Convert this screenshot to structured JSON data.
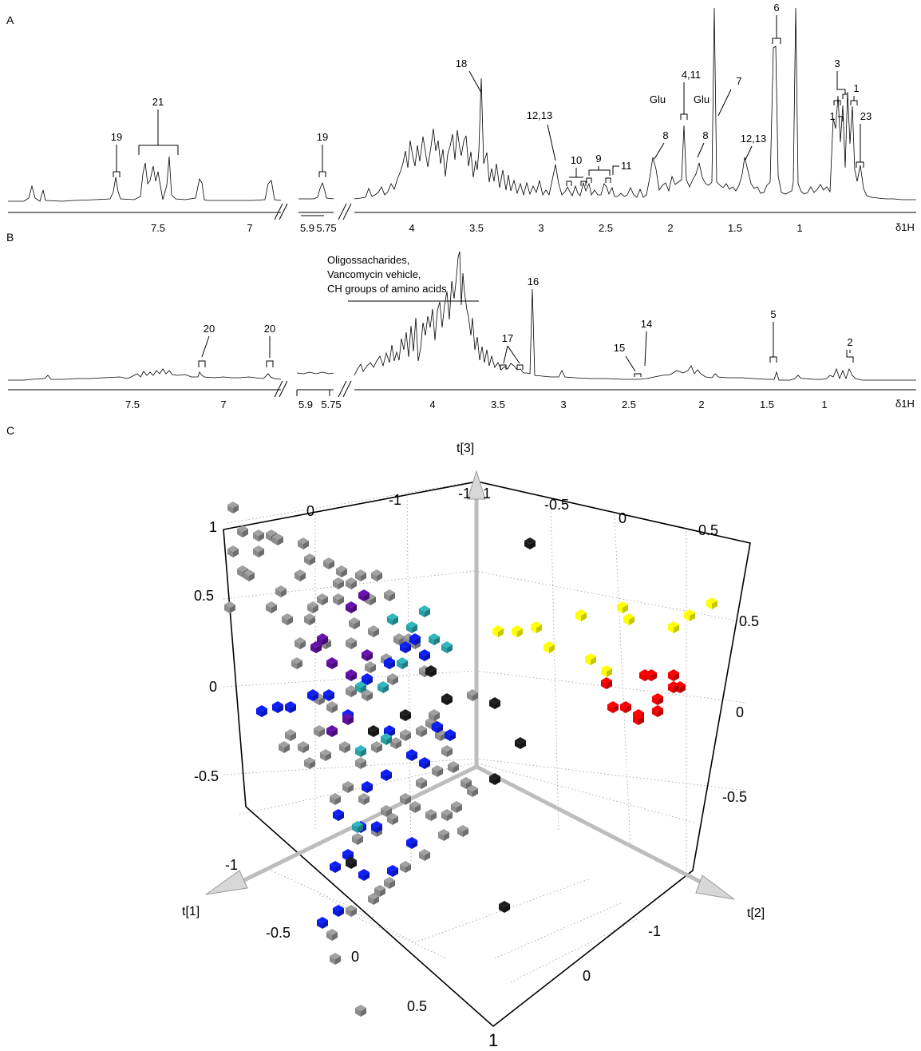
{
  "chart_data": [
    {
      "panel": "A",
      "type": "line",
      "xlabel": "δ1H",
      "segments": [
        {
          "xlim": [
            7.85,
            6.68
          ],
          "ticks": [
            "7.5",
            "7"
          ]
        },
        {
          "xlim": [
            5.95,
            5.7
          ],
          "ticks": [
            "5.9",
            "5.75"
          ]
        },
        {
          "xlim": [
            4.35,
            0.65
          ],
          "ticks": [
            "4",
            "3.5",
            "3",
            "2.5",
            "2",
            "1.5",
            "1"
          ]
        }
      ],
      "annotations": [
        "19",
        "21",
        "19",
        "18",
        "12,13",
        "10",
        "9",
        "11",
        "8",
        "4,11",
        "Glu",
        "Glu",
        "8",
        "7",
        "12,13",
        "6",
        "3",
        "1",
        "1",
        "23"
      ]
    },
    {
      "panel": "B",
      "type": "line",
      "xlabel": "δ1H",
      "segments": [
        {
          "xlim": [
            7.85,
            6.68
          ],
          "ticks": [
            "7.5",
            "7"
          ]
        },
        {
          "xlim": [
            5.95,
            5.7
          ],
          "ticks": [
            "5.9",
            "5.75"
          ]
        },
        {
          "xlim": [
            4.35,
            0.65
          ],
          "ticks": [
            "4",
            "3.5",
            "3",
            "2.5",
            "2",
            "1.5",
            "1"
          ]
        }
      ],
      "annotations": [
        "20",
        "20",
        "17",
        "16",
        "15",
        "14",
        "5",
        "2"
      ],
      "region_label": [
        "Oligossacharides,",
        "Vancomycin vehicle,",
        "CH groups of amino acids"
      ]
    },
    {
      "panel": "C",
      "type": "scatter",
      "axes": [
        "t[1]",
        "t[2]",
        "t[3]"
      ],
      "tick_labels": {
        "top_back": [
          "0",
          "-1",
          "-1",
          "1",
          "-0.5",
          "0",
          "0.5"
        ],
        "left": [
          "1",
          "0.5",
          "0",
          "-0.5",
          "-1"
        ],
        "right": [
          "0.5",
          "0",
          "-0.5"
        ],
        "bottom_left": [
          "-0.5",
          "0",
          "0.5",
          "1"
        ],
        "bottom_right": [
          "-1",
          "0"
        ]
      },
      "series": [
        {
          "color": "#8c8c8c",
          "points": [
            [
              0.73,
              0.45
            ],
            [
              0.76,
              0.51
            ],
            [
              0.81,
              0.52
            ],
            [
              0.85,
              0.52
            ],
            [
              0.81,
              0.56
            ],
            [
              0.76,
              0.61
            ],
            [
              0.72,
              0.7
            ],
            [
              0.73,
              0.56
            ],
            [
              0.78,
              0.62
            ],
            [
              0.87,
              0.53
            ],
            [
              0.95,
              0.54
            ],
            [
              0.97,
              0.58
            ],
            [
              0.94,
              0.62
            ],
            [
              0.88,
              0.66
            ],
            [
              0.85,
              0.7
            ],
            [
              0.9,
              0.73
            ],
            [
              0.97,
              0.73
            ],
            [
              1.03,
              0.59
            ],
            [
              1.07,
              0.61
            ],
            [
              1.06,
              0.64
            ],
            [
              1.01,
              0.68
            ],
            [
              0.98,
              0.7
            ],
            [
              0.94,
              0.79
            ],
            [
              0.93,
              0.84
            ],
            [
              1.02,
              0.79
            ],
            [
              1.1,
              0.64
            ],
            [
              1.13,
              0.62
            ],
            [
              1.18,
              0.62
            ],
            [
              1.16,
              0.68
            ],
            [
              1.22,
              0.67
            ],
            [
              1.17,
              0.76
            ],
            [
              1.11,
              0.74
            ],
            [
              1.06,
              0.68
            ],
            [
              1.1,
              0.79
            ],
            [
              1.16,
              0.85
            ],
            [
              1.21,
              0.83
            ],
            [
              1.25,
              0.78
            ],
            [
              1.28,
              0.78
            ],
            [
              1.3,
              0.79
            ],
            [
              1.23,
              0.88
            ],
            [
              1.15,
              0.92
            ],
            [
              1.1,
              0.91
            ],
            [
              1.04,
              0.95
            ],
            [
              1.0,
              1.01
            ],
            [
              1.0,
              0.93
            ],
            [
              0.91,
              1.02
            ],
            [
              0.89,
              1.05
            ],
            [
              0.95,
              1.05
            ],
            [
              0.97,
              1.09
            ],
            [
              1.02,
              1.07
            ],
            [
              1.08,
              1.05
            ],
            [
              1.13,
              1.09
            ],
            [
              1.18,
              1.05
            ],
            [
              1.24,
              1.04
            ],
            [
              1.27,
              1.02
            ],
            [
              1.32,
              1.01
            ],
            [
              1.35,
              0.99
            ],
            [
              1.38,
              1.02
            ],
            [
              1.4,
              1.06
            ],
            [
              1.42,
              1.1
            ],
            [
              1.37,
              1.11
            ],
            [
              1.32,
              1.14
            ],
            [
              1.27,
              1.18
            ],
            [
              1.21,
              1.21
            ],
            [
              1.14,
              1.18
            ],
            [
              1.09,
              1.15
            ],
            [
              1.05,
              1.18
            ],
            [
              1.12,
              1.28
            ],
            [
              1.18,
              1.26
            ],
            [
              1.23,
              1.23
            ],
            [
              1.3,
              1.2
            ],
            [
              1.35,
              1.22
            ],
            [
              1.4,
              1.22
            ],
            [
              1.43,
              1.2
            ],
            [
              1.46,
              1.14
            ],
            [
              1.48,
              1.16
            ],
            [
              1.45,
              1.26
            ],
            [
              1.39,
              1.27
            ],
            [
              1.33,
              1.32
            ],
            [
              1.27,
              1.35
            ],
            [
              1.22,
              1.39
            ],
            [
              1.17,
              1.43
            ],
            [
              1.1,
              1.46
            ],
            [
              1.04,
              1.52
            ],
            [
              1.05,
              1.58
            ],
            [
              1.13,
              1.71
            ],
            [
              1.19,
              1.41
            ],
            [
              1.36,
              0.97
            ],
            [
              1.48,
              0.92
            ],
            [
              1.33,
              0.86
            ]
          ]
        },
        {
          "color": "#0b1be8",
          "points": [
            [
              0.82,
              0.96
            ],
            [
              0.87,
              0.95
            ],
            [
              0.91,
              0.95
            ],
            [
              0.98,
              0.92
            ],
            [
              1.03,
              0.92
            ],
            [
              1.09,
              0.97
            ],
            [
              1.15,
              0.88
            ],
            [
              1.22,
              0.84
            ],
            [
              1.27,
              0.8
            ],
            [
              1.3,
              0.78
            ],
            [
              1.33,
              0.82
            ],
            [
              1.22,
              1.01
            ],
            [
              1.29,
              1.07
            ],
            [
              1.33,
              1.09
            ],
            [
              1.41,
              1.02
            ],
            [
              1.37,
              1.0
            ],
            [
              1.21,
              1.12
            ],
            [
              1.15,
              1.15
            ],
            [
              1.06,
              1.22
            ],
            [
              1.05,
              1.35
            ],
            [
              1.09,
              1.32
            ],
            [
              1.13,
              1.25
            ],
            [
              1.18,
              1.25
            ],
            [
              1.14,
              1.37
            ],
            [
              1.23,
              1.36
            ],
            [
              1.29,
              1.29
            ],
            [
              1.06,
              1.46
            ],
            [
              1.01,
              1.49
            ]
          ]
        },
        {
          "color": "#29a0a6",
          "points": [
            [
              1.23,
              0.73
            ],
            [
              1.29,
              0.75
            ],
            [
              1.33,
              0.71
            ],
            [
              1.36,
              0.78
            ],
            [
              1.4,
              0.8
            ],
            [
              1.26,
              0.84
            ],
            [
              1.2,
              0.9
            ],
            [
              1.13,
              0.9
            ],
            [
              1.21,
              1.03
            ],
            [
              1.13,
              1.06
            ],
            [
              1.12,
              1.25
            ]
          ]
        },
        {
          "color": "#5b0f99",
          "points": [
            [
              1.1,
              0.7
            ],
            [
              1.14,
              0.67
            ],
            [
              1.01,
              0.78
            ],
            [
              0.99,
              0.8
            ],
            [
              1.04,
              0.84
            ],
            [
              1.1,
              0.87
            ],
            [
              1.15,
              0.82
            ],
            [
              1.09,
              0.98
            ],
            [
              1.04,
              1.01
            ]
          ]
        },
        {
          "color": "#1a1a1a",
          "points": [
            [
              1.66,
              0.54
            ],
            [
              1.27,
              0.97
            ],
            [
              1.4,
              0.93
            ],
            [
              1.55,
              0.94
            ],
            [
              1.63,
              1.04
            ],
            [
              1.17,
              1.01
            ],
            [
              1.55,
              1.13
            ],
            [
              1.1,
              1.34
            ],
            [
              1.58,
              1.45
            ],
            [
              1.35,
              0.86
            ]
          ]
        },
        {
          "color": "#ffff00",
          "points": [
            [
              1.56,
              0.76
            ],
            [
              1.62,
              0.76
            ],
            [
              1.68,
              0.75
            ],
            [
              1.82,
              0.72
            ],
            [
              1.95,
              0.7
            ],
            [
              1.97,
              0.73
            ],
            [
              1.72,
              0.8
            ],
            [
              1.85,
              0.83
            ],
            [
              1.9,
              0.86
            ],
            [
              2.11,
              0.75
            ],
            [
              2.16,
              0.72
            ],
            [
              2.23,
              0.69
            ]
          ]
        },
        {
          "color": "#f00000",
          "points": [
            [
              1.9,
              0.89
            ],
            [
              2.02,
              0.87
            ],
            [
              2.04,
              0.87
            ],
            [
              2.11,
              0.87
            ],
            [
              2.13,
              0.9
            ],
            [
              1.92,
              0.95
            ],
            [
              1.96,
              0.95
            ],
            [
              2.0,
              0.97
            ],
            [
              2.06,
              0.93
            ],
            [
              2.0,
              0.98
            ],
            [
              2.06,
              0.96
            ],
            [
              2.11,
              0.9
            ]
          ]
        }
      ]
    }
  ]
}
